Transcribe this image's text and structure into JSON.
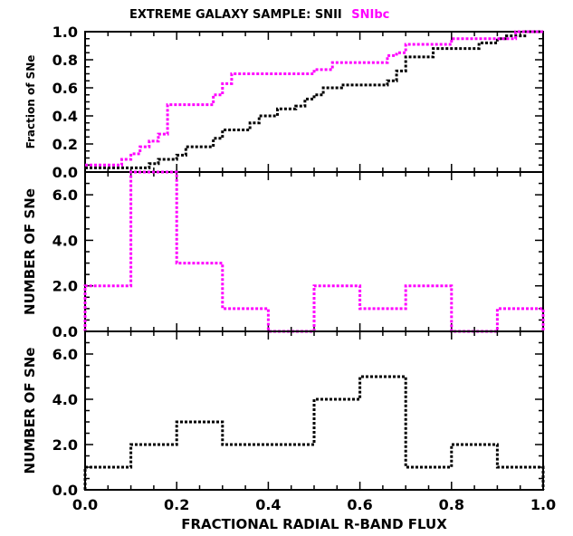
{
  "title": {
    "prefix": "EXTREME GALAXY SAMPLE: SNII",
    "highlight": "SNIbc"
  },
  "colors": {
    "snii": "#000000",
    "snibc": "#ff00ff",
    "axis": "#000000",
    "background": "#ffffff"
  },
  "chart_data": [
    {
      "type": "line",
      "id": "cumulative",
      "ylabel": "Fraction of SNe",
      "xlim": [
        0.0,
        1.0
      ],
      "ylim": [
        0.0,
        1.0
      ],
      "yticks": [
        "0.0",
        "0.2",
        "0.4",
        "0.6",
        "0.8",
        "1.0"
      ],
      "grid": false,
      "series": [
        {
          "name": "SNII",
          "color": "#000000",
          "step": true,
          "x": [
            0.0,
            0.14,
            0.16,
            0.2,
            0.22,
            0.28,
            0.3,
            0.32,
            0.36,
            0.38,
            0.4,
            0.42,
            0.46,
            0.48,
            0.5,
            0.52,
            0.56,
            0.58,
            0.66,
            0.68,
            0.7,
            0.76,
            0.8,
            0.86,
            0.9,
            0.92,
            0.96,
            1.0
          ],
          "y": [
            0.03,
            0.06,
            0.09,
            0.12,
            0.18,
            0.24,
            0.3,
            0.3,
            0.35,
            0.4,
            0.4,
            0.45,
            0.47,
            0.52,
            0.55,
            0.6,
            0.62,
            0.62,
            0.65,
            0.72,
            0.82,
            0.88,
            0.88,
            0.92,
            0.95,
            0.97,
            1.0,
            1.0
          ]
        },
        {
          "name": "SNIbc",
          "color": "#ff00ff",
          "step": true,
          "x": [
            0.0,
            0.08,
            0.1,
            0.12,
            0.14,
            0.16,
            0.18,
            0.28,
            0.3,
            0.32,
            0.5,
            0.54,
            0.66,
            0.68,
            0.7,
            0.8,
            0.9,
            0.94,
            1.0
          ],
          "y": [
            0.05,
            0.09,
            0.13,
            0.18,
            0.22,
            0.27,
            0.48,
            0.55,
            0.63,
            0.7,
            0.73,
            0.78,
            0.83,
            0.85,
            0.91,
            0.95,
            0.95,
            1.0,
            1.0
          ]
        }
      ]
    },
    {
      "type": "bar",
      "id": "snibc-histogram",
      "ylabel": "NUMBER OF SNe",
      "xlim": [
        0.0,
        1.0
      ],
      "ylim": [
        0.0,
        7.0
      ],
      "yticks": [
        "0.0",
        "2.0",
        "4.0",
        "6.0"
      ],
      "grid": false,
      "bin_edges": [
        0.0,
        0.1,
        0.2,
        0.3,
        0.4,
        0.5,
        0.6,
        0.7,
        0.8,
        0.9,
        1.0
      ],
      "series": [
        {
          "name": "SNIbc",
          "color": "#ff00ff",
          "values": [
            2,
            7,
            3,
            1,
            0,
            2,
            1,
            2,
            0,
            1
          ]
        }
      ]
    },
    {
      "type": "bar",
      "id": "snii-histogram",
      "ylabel": "NUMBER OF SNe",
      "xlabel": "FRACTIONAL RADIAL R-BAND FLUX",
      "xlim": [
        0.0,
        1.0
      ],
      "ylim": [
        0.0,
        7.0
      ],
      "xticks": [
        "0.0",
        "0.2",
        "0.4",
        "0.6",
        "0.8",
        "1.0"
      ],
      "yticks": [
        "0.0",
        "2.0",
        "4.0",
        "6.0"
      ],
      "grid": false,
      "bin_edges": [
        0.0,
        0.1,
        0.2,
        0.3,
        0.4,
        0.5,
        0.6,
        0.7,
        0.8,
        0.9,
        1.0
      ],
      "series": [
        {
          "name": "SNII",
          "color": "#000000",
          "values": [
            1,
            2,
            3,
            2,
            2,
            4,
            5,
            1,
            2,
            1
          ]
        }
      ]
    }
  ]
}
